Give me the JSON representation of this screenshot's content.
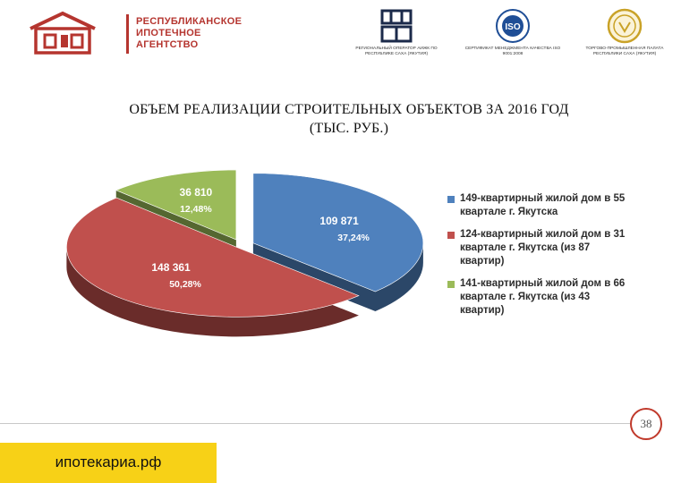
{
  "header": {
    "logo_lines": [
      "РЕСПУБЛИКАНСКОЕ",
      "ИПОТЕЧНОЕ",
      "АГЕНТСТВО"
    ],
    "partners": [
      {
        "icon": "dom-rf-logo",
        "caption": "РЕГИОНАЛЬНЫЙ ОПЕРАТОР АИЖК ПО РЕСПУБЛИКЕ САХА (ЯКУТИЯ)"
      },
      {
        "icon": "iso-certificate-seal",
        "caption": "СЕРТИФИКАТ МЕНЕДЖМЕНТА КАЧЕСТВА ISO 9001:2008"
      },
      {
        "icon": "chamber-of-commerce-seal",
        "caption": "ТОРГОВО-ПРОМЫШЛЕННАЯ ПАЛАТА РЕСПУБЛИКИ САХА (ЯКУТИЯ)"
      }
    ]
  },
  "title_line1": "ОБЪЕМ РЕАЛИЗАЦИИ СТРОИТЕЛЬНЫХ ОБЪЕКТОВ ЗА 2016 ГОД",
  "title_line2": "(ТЫС. РУБ.)",
  "chart_data": {
    "type": "pie",
    "style": "3d-exploded",
    "legend_position": "right",
    "slices": [
      {
        "label": "149-квартирный жилой дом в 55 квартале г. Якутска",
        "value": 109871,
        "value_text": "109 871",
        "percent_text": "37,24%",
        "color": "#4f81bd"
      },
      {
        "label": "124-квартирный жилой дом в 31 квартале г. Якутска (из 87 квартир)",
        "value": 148361,
        "value_text": "148 361",
        "percent_text": "50,28%",
        "color": "#c0504d"
      },
      {
        "label": "141-квартирный жилой дом в 66 квартале г. Якутска (из 43 квартир)",
        "value": 36810,
        "value_text": "36 810",
        "percent_text": "12,48%",
        "color": "#9bbb59"
      }
    ]
  },
  "page_number": "38",
  "site": "ипотекариа.рф"
}
